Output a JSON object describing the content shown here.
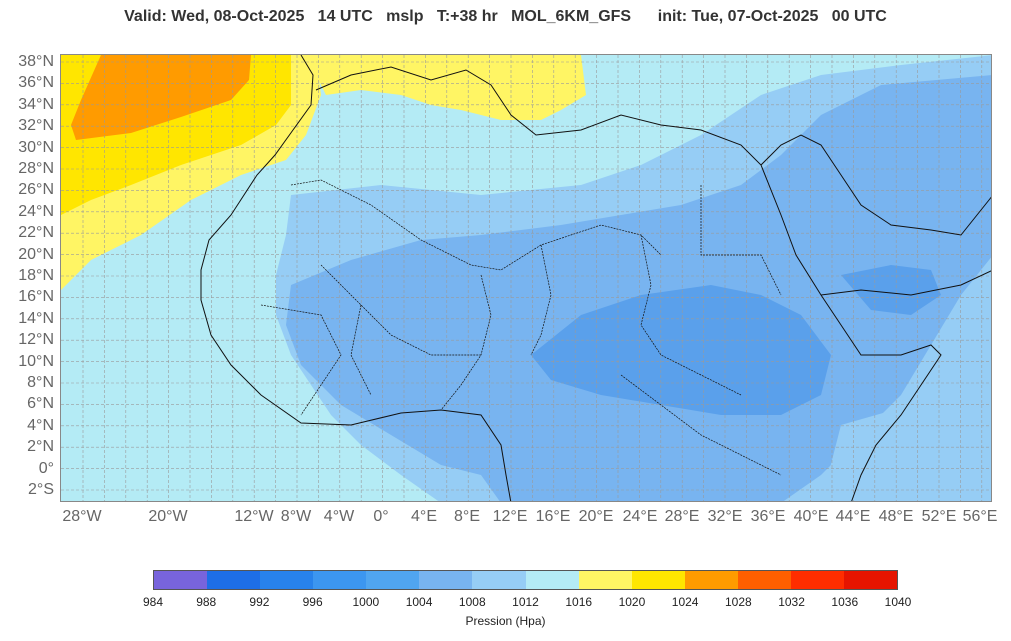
{
  "header": {
    "title": "Valid: Wed, 08-Oct-2025   14 UTC   mslp   T:+38 hr   MOL_6KM_GFS      init: Tue, 07-Oct-2025   00 UTC"
  },
  "map": {
    "latitude_labels": [
      "38°N",
      "36°N",
      "34°N",
      "32°N",
      "30°N",
      "28°N",
      "26°N",
      "24°N",
      "22°N",
      "20°N",
      "18°N",
      "16°N",
      "14°N",
      "12°N",
      "10°N",
      "8°N",
      "6°N",
      "4°N",
      "2°N",
      "0°",
      "2°S"
    ],
    "longitude_labels": [
      "28°W",
      "20°W",
      "12°W",
      "8°W",
      "4°W",
      "0°",
      "4°E",
      "8°E",
      "12°E",
      "16°E",
      "20°E",
      "24°E",
      "28°E",
      "32°E",
      "36°E",
      "40°E",
      "44°E",
      "48°E",
      "52°E",
      "56°E"
    ],
    "colors": {
      "c1004": "#78b4f0",
      "c1008": "#96cdf5",
      "c1012": "#b4ebf5",
      "c1016": "#fff564",
      "c1020": "#ffe600",
      "c1024": "#ff9b00",
      "c1000": "#5aa0eb",
      "grid": "#9a9a9a",
      "coast": "#111111"
    }
  },
  "colorbar": {
    "colors": [
      "#7864dc",
      "#1e6ee6",
      "#2882eb",
      "#3c96f0",
      "#50a5f0",
      "#78b4f0",
      "#96cdf5",
      "#b4ebf5",
      "#fff564",
      "#ffe600",
      "#ff9b00",
      "#ff5f00",
      "#ff2d00",
      "#e61400"
    ],
    "tick_labels": [
      "984",
      "988",
      "992",
      "996",
      "1000",
      "1004",
      "1008",
      "1012",
      "1016",
      "1020",
      "1024",
      "1028",
      "1032",
      "1036",
      "1040"
    ],
    "title": "Pression (Hpa)"
  }
}
